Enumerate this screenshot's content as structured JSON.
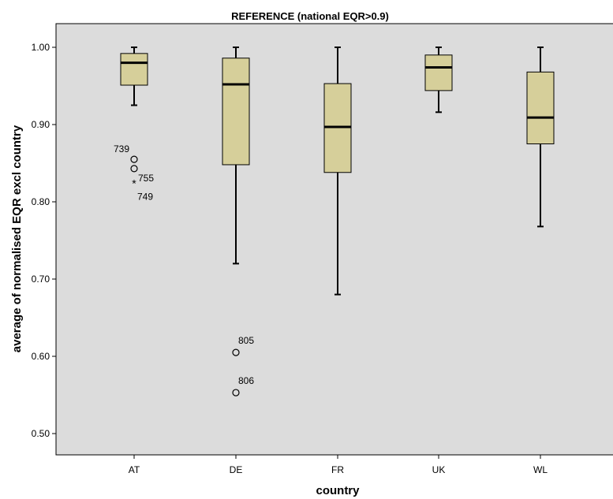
{
  "chart_data": {
    "type": "box",
    "title": "REFERENCE (national EQR>0.9)",
    "xlabel": "country",
    "ylabel": "average of normalised EQR excl country",
    "ylim": [
      0.48,
      1.03
    ],
    "yticks": [
      0.5,
      0.6,
      0.7,
      0.8,
      0.9,
      1.0
    ],
    "ytick_labels": [
      "0.50",
      "0.60",
      "0.70",
      "0.80",
      "0.90",
      "1.00"
    ],
    "grid": false,
    "categories": [
      "AT",
      "DE",
      "FR",
      "UK",
      "WL"
    ],
    "boxes": [
      {
        "category": "AT",
        "whisker_low": 0.925,
        "q1": 0.951,
        "median": 0.98,
        "q3": 0.992,
        "whisker_high": 1.0,
        "outliers": [
          {
            "value": 0.855,
            "label": "739",
            "kind": "outlier"
          },
          {
            "value": 0.843,
            "label": "755",
            "kind": "outlier"
          },
          {
            "value": 0.825,
            "label": "749",
            "kind": "extreme"
          }
        ]
      },
      {
        "category": "DE",
        "whisker_low": 0.72,
        "q1": 0.848,
        "median": 0.952,
        "q3": 0.986,
        "whisker_high": 1.0,
        "outliers": [
          {
            "value": 0.605,
            "label": "805",
            "kind": "outlier"
          },
          {
            "value": 0.553,
            "label": "806",
            "kind": "outlier"
          }
        ]
      },
      {
        "category": "FR",
        "whisker_low": 0.68,
        "q1": 0.838,
        "median": 0.897,
        "q3": 0.953,
        "whisker_high": 1.0,
        "outliers": []
      },
      {
        "category": "UK",
        "whisker_low": 0.916,
        "q1": 0.944,
        "median": 0.974,
        "q3": 0.99,
        "whisker_high": 1.0,
        "outliers": []
      },
      {
        "category": "WL",
        "whisker_low": 0.768,
        "q1": 0.875,
        "median": 0.909,
        "q3": 0.968,
        "whisker_high": 1.0,
        "outliers": []
      }
    ],
    "colors": {
      "box_fill": "#d6cf9a",
      "plot_background": "#dcdcdc"
    }
  }
}
